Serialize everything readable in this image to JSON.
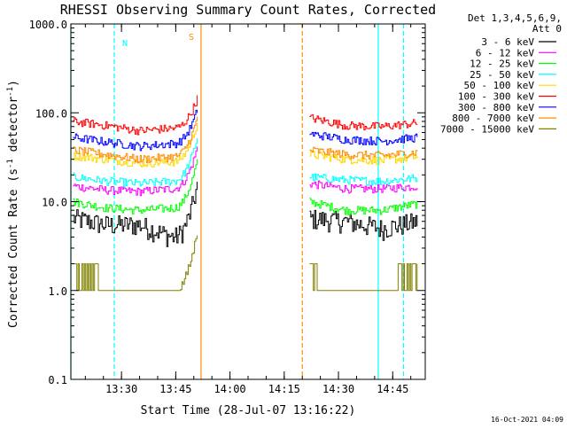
{
  "chart_data": {
    "type": "line",
    "title": "RHESSI Observing Summary Count Rates, Corrected",
    "xlabel": "Start Time (28-Jul-07 13:16:22)",
    "ylabel_main": "Corrected Count Rate (s",
    "ylabel_sup1": "-1",
    "ylabel_mid": " detector",
    "ylabel_sup2": "-1",
    "ylabel_end": ")",
    "yscale": "log",
    "xlim": [
      "13:16",
      "14:54"
    ],
    "ylim": [
      0.1,
      1000
    ],
    "x_ticks": [
      "13:30",
      "13:45",
      "14:00",
      "14:15",
      "14:30",
      "14:45"
    ],
    "y_ticks": [
      "0.1",
      "1.0",
      "10.0",
      "100.0",
      "1000.0"
    ],
    "legend_header": [
      "Det 1,3,4,5,6,9,",
      "Att 0"
    ],
    "legend_position": "top-right",
    "series": [
      {
        "name": "3 - 6 keV",
        "color": "#000000",
        "seg1": [
          6.5,
          5.5,
          5.5,
          4.0,
          16.0
        ],
        "seg2": [
          6.5,
          6.0,
          5.0,
          6.0
        ]
      },
      {
        "name": "6 - 12 keV",
        "color": "#ff00ff",
        "seg1": [
          15.0,
          13.5,
          13.0,
          14.0,
          42.0
        ],
        "seg2": [
          16.0,
          14.0,
          14.0,
          15.0
        ]
      },
      {
        "name": "12 - 25 keV",
        "color": "#00ff00",
        "seg1": [
          10.0,
          8.5,
          8.0,
          8.5,
          30.0
        ],
        "seg2": [
          10.0,
          8.0,
          8.0,
          9.5
        ]
      },
      {
        "name": "25 - 50 keV",
        "color": "#00ffff",
        "seg1": [
          19.0,
          17.0,
          16.0,
          17.0,
          55.0
        ],
        "seg2": [
          19.0,
          17.5,
          17.0,
          18.5
        ]
      },
      {
        "name": "50 - 100 keV",
        "color": "#ffd700",
        "seg1": [
          33.0,
          30.0,
          27.0,
          28.0,
          80.0
        ],
        "seg2": [
          34.0,
          30.0,
          29.0,
          32.0
        ]
      },
      {
        "name": "100 - 300 keV",
        "color": "#ff0000",
        "seg1": [
          80.0,
          72.0,
          63.0,
          67.0,
          150.0
        ],
        "seg2": [
          88.0,
          72.0,
          70.0,
          77.0
        ]
      },
      {
        "name": "300 - 800 keV",
        "color": "#0000ff",
        "seg1": [
          53.0,
          47.0,
          42.0,
          45.0,
          110.0
        ],
        "seg2": [
          58.0,
          50.0,
          48.0,
          53.0
        ]
      },
      {
        "name": "800 - 7000 keV",
        "color": "#ff8c00",
        "seg1": [
          38.0,
          34.0,
          30.0,
          32.0,
          90.0
        ],
        "seg2": [
          38.0,
          34.0,
          33.0,
          36.0
        ]
      },
      {
        "name": "7000 - 15000 keV",
        "color": "#808000",
        "seg1": [
          2.0,
          1.0,
          1.0,
          1.0,
          5.0
        ],
        "seg2": [
          2.0,
          1.0,
          1.0,
          2.0
        ]
      }
    ],
    "night_label": "N",
    "saa_label": "S",
    "footer_date": "16-Oct-2021 04:09",
    "markers": {
      "cyan": "#00ffff",
      "orange": "#ff8c00"
    }
  }
}
